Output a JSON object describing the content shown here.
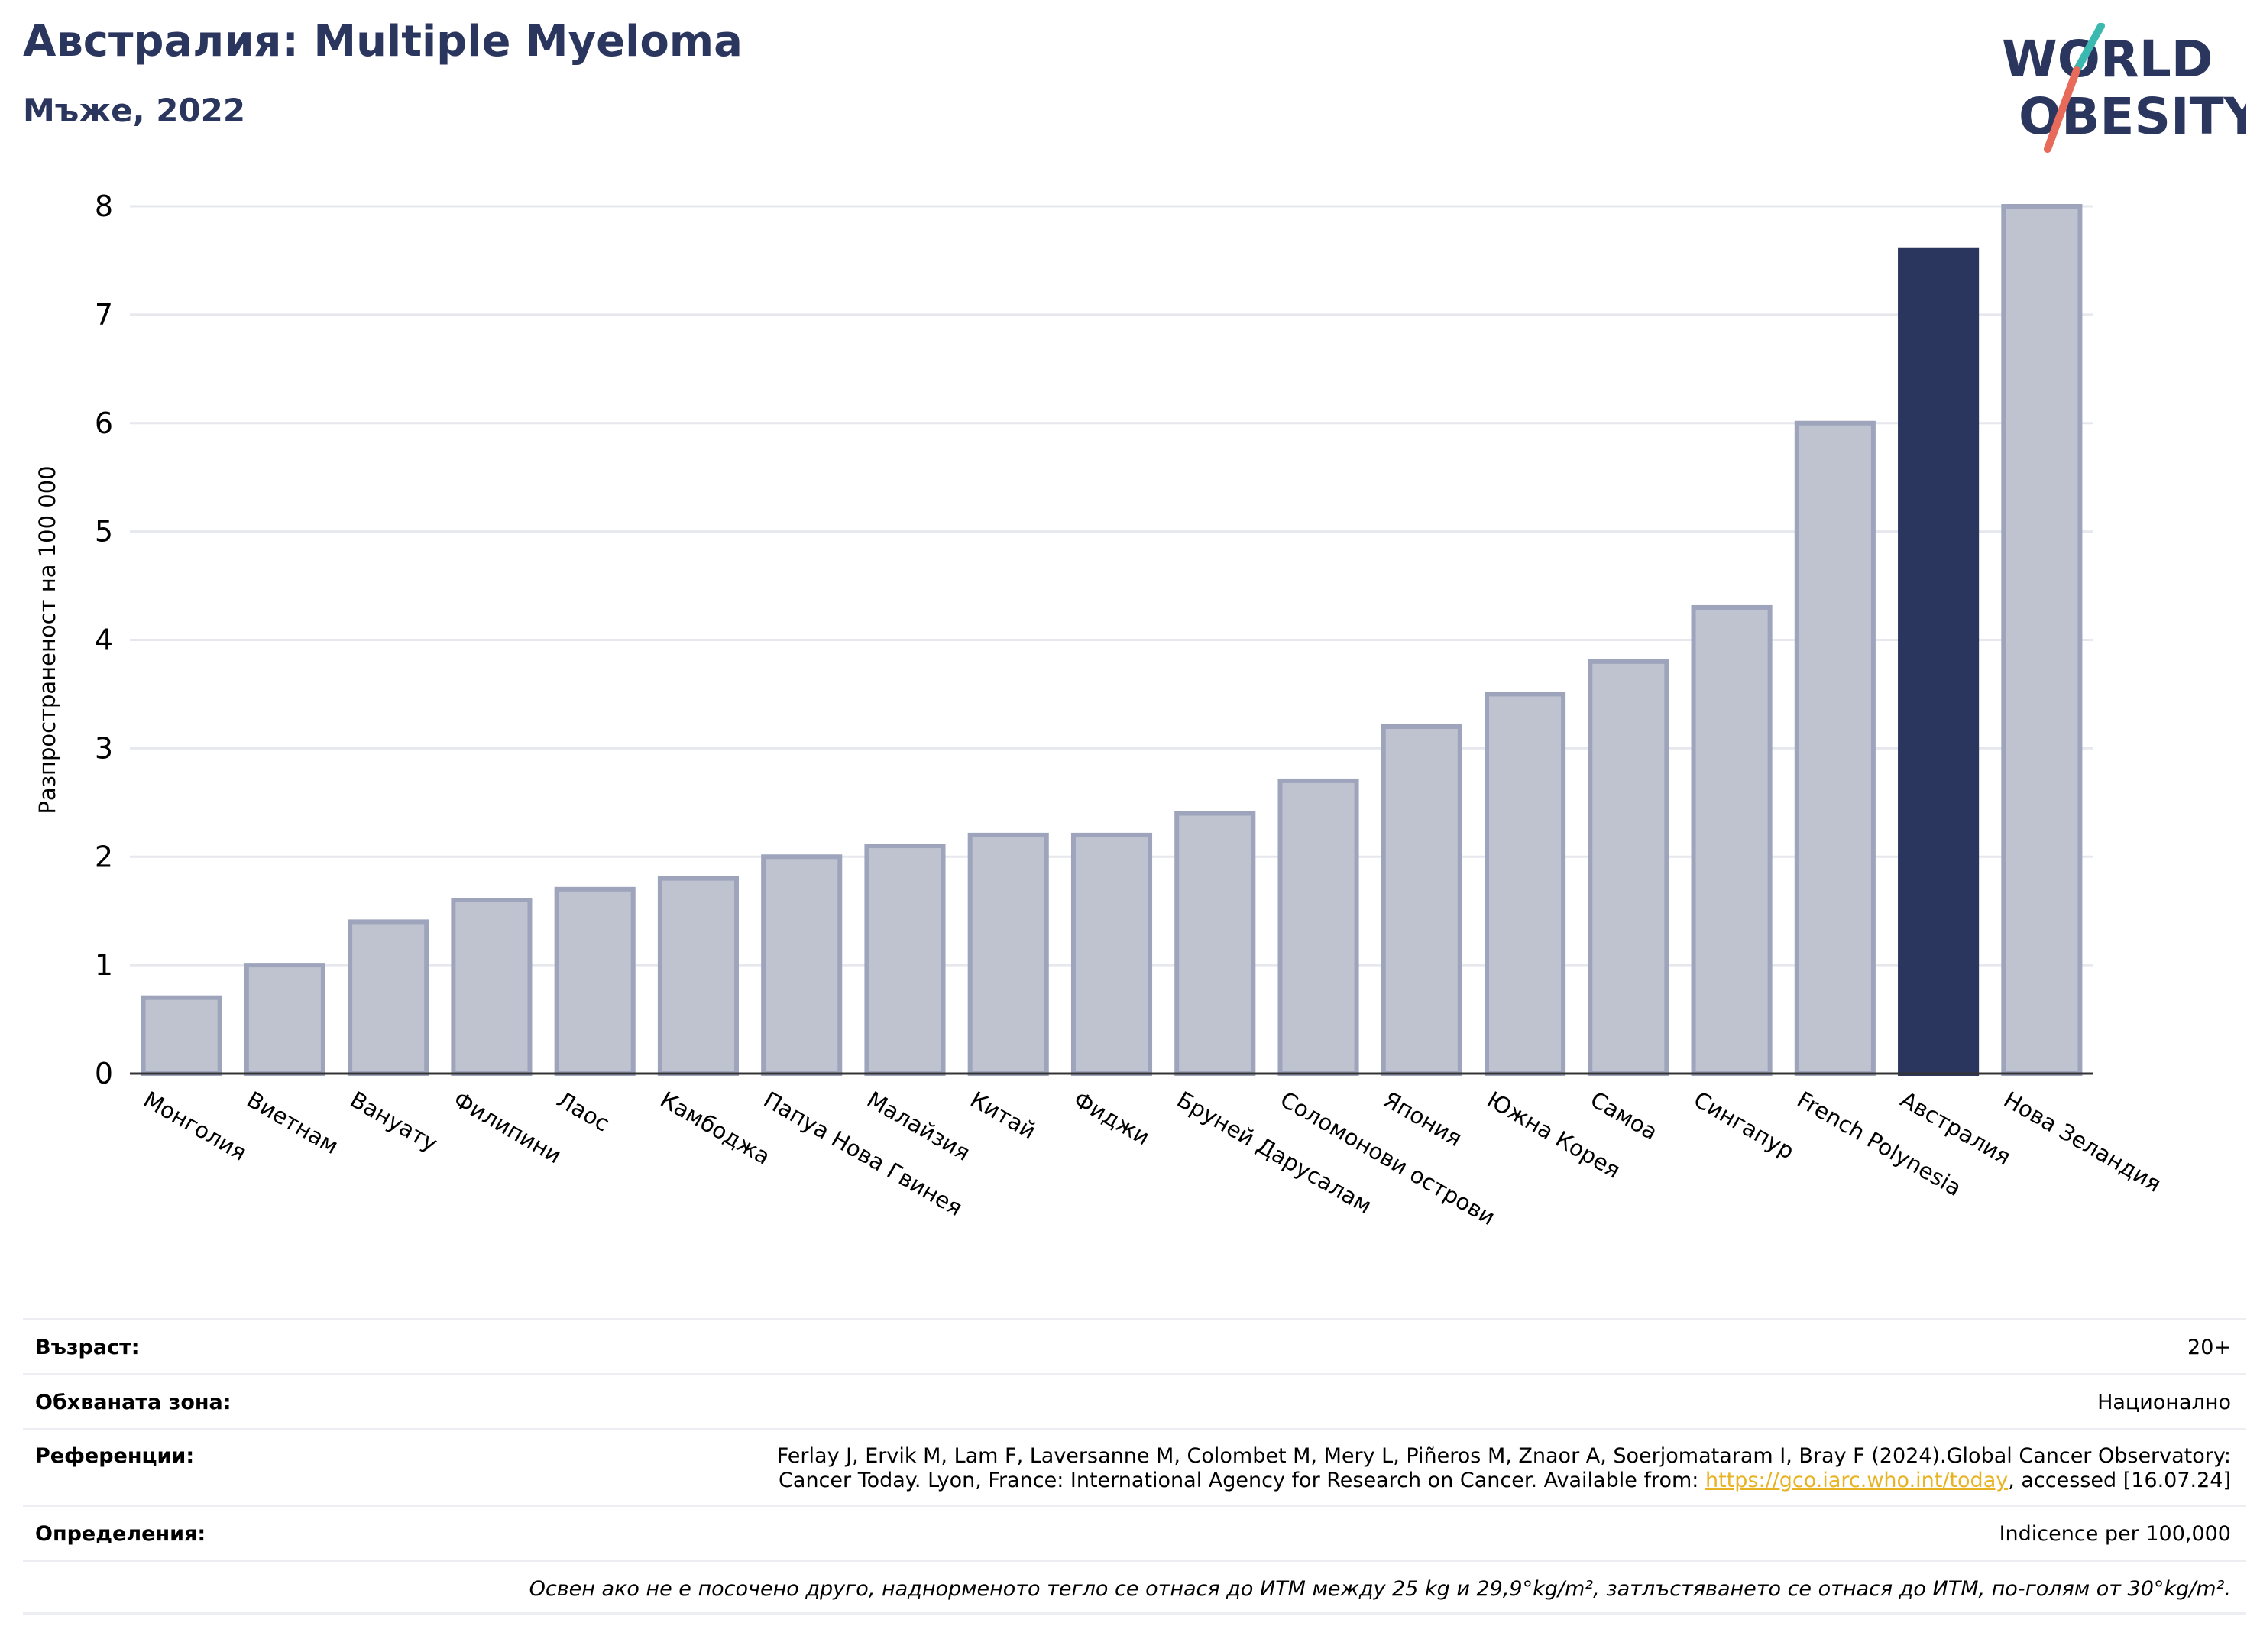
{
  "header": {
    "title": "Австралия: Multiple Myeloma",
    "subtitle": "Мъже, 2022",
    "logo_line1": "WORLD",
    "logo_line2": "OBESITY"
  },
  "chart_data": {
    "type": "bar",
    "title": "Австралия: Multiple Myeloma",
    "subtitle": "Мъже, 2022",
    "xlabel": "",
    "ylabel": "Разпространеност  на 100 000",
    "ylim": [
      0,
      8
    ],
    "yticks": [
      0,
      1,
      2,
      3,
      4,
      5,
      6,
      7,
      8
    ],
    "grid": true,
    "highlight": "Австралия",
    "colors": {
      "default": "#bfc3d0",
      "default_edge": "#9ea4bc",
      "highlight": "#2b365f",
      "grid": "#e6e8ee",
      "axis": "#333333"
    },
    "categories": [
      "Монголия",
      "Виетнам",
      "Вануату",
      "Филипини",
      "Лаос",
      "Камбоджа",
      "Папуа Нова Гвинея",
      "Малайзия",
      "Китай",
      "Фиджи",
      "Бруней Дарусалам",
      "Соломонови острови",
      "Япония",
      "Южна Корея",
      "Самоа",
      "Сингапур",
      "French Polynesia",
      "Австралия",
      "Нова Зеландия"
    ],
    "values": [
      0.7,
      1.0,
      1.4,
      1.6,
      1.7,
      1.8,
      2.0,
      2.1,
      2.2,
      2.2,
      2.4,
      2.7,
      3.2,
      3.5,
      3.8,
      4.3,
      6.0,
      7.6,
      8.0
    ]
  },
  "info": {
    "age_label": "Възраст:",
    "age_value": "20+",
    "coverage_label": "Обхваната зона:",
    "coverage_value": "Национално",
    "references_label": "Референции:",
    "references_line1": "Ferlay J, Ervik M, Lam F, Laversanne M, Colombet M, Mery L, Piñeros M, Znaor A, Soerjomataram I, Bray F (2024).Global Cancer Observatory:",
    "references_line2_pre": "Cancer Today. Lyon, France: International Agency for Research on Cancer. Available from: ",
    "references_link": "https://gco.iarc.who.int/today",
    "references_line2_post": ", accessed [16.07.24]",
    "definitions_label": "Определения:",
    "definitions_value": "Indicence per 100,000",
    "footnote": "Освен ако не е посочено друго, наднорменото тегло се отнася до ИТМ между 25 kg и 29,9°kg/m², затлъстяването се отнася до ИТМ, по-голям от 30°kg/m²."
  }
}
